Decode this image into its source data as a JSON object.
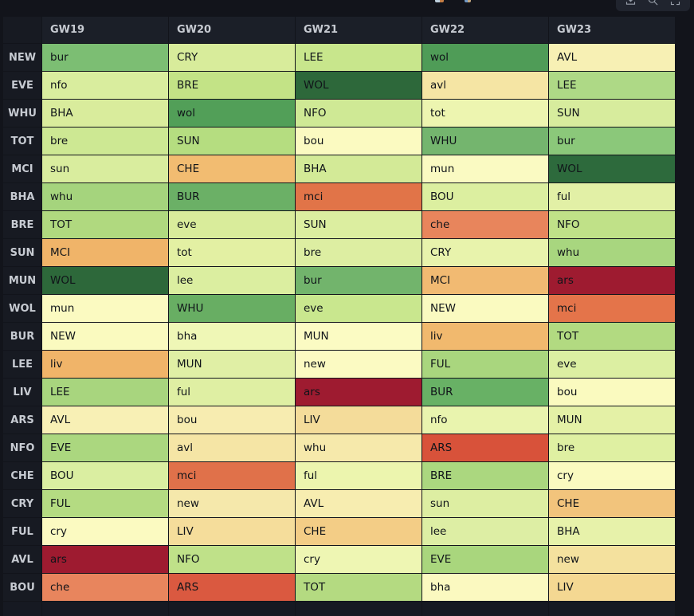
{
  "toolbar": {
    "icons": [
      {
        "name": "download-icon"
      },
      {
        "name": "search-icon"
      },
      {
        "name": "fullscreen-icon"
      }
    ],
    "panel_bg": "#20242e",
    "icon_color": "#99a0ab"
  },
  "table": {
    "corner_label": "",
    "columns": [
      "GW19",
      "GW20",
      "GW21",
      "GW22",
      "GW23"
    ],
    "header_bg": "#1b1f28",
    "team_col_bg": "#171a22",
    "label_color": "#c7cbd2",
    "cell_text_color": "#101419",
    "rows": [
      {
        "team": "NEW",
        "cells": [
          {
            "t": "bur",
            "c": "#7cbe73"
          },
          {
            "t": "CRY",
            "c": "#d8ec9b"
          },
          {
            "t": "LEE",
            "c": "#c8e68c"
          },
          {
            "t": "wol",
            "c": "#4f9c57"
          },
          {
            "t": "AVL",
            "c": "#f7f0b4"
          }
        ]
      },
      {
        "team": "EVE",
        "cells": [
          {
            "t": "nfo",
            "c": "#d9ed9e"
          },
          {
            "t": "BRE",
            "c": "#c3e386"
          },
          {
            "t": "WOL",
            "c": "#2d683a"
          },
          {
            "t": "avl",
            "c": "#f5e5a4"
          },
          {
            "t": "LEE",
            "c": "#aed986"
          }
        ]
      },
      {
        "team": "WHU",
        "cells": [
          {
            "t": "BHA",
            "c": "#d9ec9c"
          },
          {
            "t": "wol",
            "c": "#529f58"
          },
          {
            "t": "NFO",
            "c": "#cfe995"
          },
          {
            "t": "tot",
            "c": "#edf5b0"
          },
          {
            "t": "SUN",
            "c": "#d7ec9d"
          }
        ]
      },
      {
        "team": "TOT",
        "cells": [
          {
            "t": "bre",
            "c": "#cde893"
          },
          {
            "t": "SUN",
            "c": "#b5dd80"
          },
          {
            "t": "bou",
            "c": "#fbfac1"
          },
          {
            "t": "WHU",
            "c": "#74b56e"
          },
          {
            "t": "bur",
            "c": "#8bc87a"
          }
        ]
      },
      {
        "team": "MCI",
        "cells": [
          {
            "t": "sun",
            "c": "#d9ed9e"
          },
          {
            "t": "CHE",
            "c": "#f2bc71"
          },
          {
            "t": "BHA",
            "c": "#d3ea97"
          },
          {
            "t": "mun",
            "c": "#fafac2"
          },
          {
            "t": "WOL",
            "c": "#2d6a3c"
          }
        ]
      },
      {
        "team": "BHA",
        "cells": [
          {
            "t": "whu",
            "c": "#a5d47d"
          },
          {
            "t": "BUR",
            "c": "#6bb066"
          },
          {
            "t": "mci",
            "c": "#e17448"
          },
          {
            "t": "BOU",
            "c": "#dcefa0"
          },
          {
            "t": "ful",
            "c": "#e2f0a6"
          }
        ]
      },
      {
        "team": "BRE",
        "cells": [
          {
            "t": "TOT",
            "c": "#b0d97f"
          },
          {
            "t": "eve",
            "c": "#d9ec9b"
          },
          {
            "t": "SUN",
            "c": "#dceea0"
          },
          {
            "t": "che",
            "c": "#e8855c"
          },
          {
            "t": "NFO",
            "c": "#c0e188"
          }
        ]
      },
      {
        "team": "SUN",
        "cells": [
          {
            "t": "MCI",
            "c": "#f0b469"
          },
          {
            "t": "tot",
            "c": "#e3f0a3"
          },
          {
            "t": "bre",
            "c": "#ddeea2"
          },
          {
            "t": "CRY",
            "c": "#e8f3ac"
          },
          {
            "t": "whu",
            "c": "#a8d67f"
          }
        ]
      },
      {
        "team": "MUN",
        "cells": [
          {
            "t": "WOL",
            "c": "#2d683a"
          },
          {
            "t": "lee",
            "c": "#dbeea0"
          },
          {
            "t": "bur",
            "c": "#72b46c"
          },
          {
            "t": "MCI",
            "c": "#f1ba72"
          },
          {
            "t": "ars",
            "c": "#9e1b30"
          }
        ]
      },
      {
        "team": "WOL",
        "cells": [
          {
            "t": "mun",
            "c": "#fbfac1"
          },
          {
            "t": "WHU",
            "c": "#68ae63"
          },
          {
            "t": "eve",
            "c": "#c9e78e"
          },
          {
            "t": "NEW",
            "c": "#fafac0"
          },
          {
            "t": "mci",
            "c": "#e4744a"
          }
        ]
      },
      {
        "team": "BUR",
        "cells": [
          {
            "t": "NEW",
            "c": "#fafabf"
          },
          {
            "t": "bha",
            "c": "#eff7b6"
          },
          {
            "t": "MUN",
            "c": "#fbfbc3"
          },
          {
            "t": "liv",
            "c": "#f1b96e"
          },
          {
            "t": "TOT",
            "c": "#b2da81"
          }
        ]
      },
      {
        "team": "LEE",
        "cells": [
          {
            "t": "liv",
            "c": "#f0b469"
          },
          {
            "t": "MUN",
            "c": "#e0efa5"
          },
          {
            "t": "new",
            "c": "#fbfac2"
          },
          {
            "t": "FUL",
            "c": "#a9d67e"
          },
          {
            "t": "eve",
            "c": "#dcefa2"
          }
        ]
      },
      {
        "team": "LIV",
        "cells": [
          {
            "t": "LEE",
            "c": "#a8d57e"
          },
          {
            "t": "ful",
            "c": "#dfefa3"
          },
          {
            "t": "ars",
            "c": "#9e1b30"
          },
          {
            "t": "BUR",
            "c": "#68b165"
          },
          {
            "t": "bou",
            "c": "#fafabf"
          }
        ]
      },
      {
        "team": "ARS",
        "cells": [
          {
            "t": "AVL",
            "c": "#f8f0b5"
          },
          {
            "t": "bou",
            "c": "#f7ecb0"
          },
          {
            "t": "LIV",
            "c": "#f4dc9a"
          },
          {
            "t": "nfo",
            "c": "#e9f4ae"
          },
          {
            "t": "MUN",
            "c": "#e4f1a6"
          }
        ]
      },
      {
        "team": "NFO",
        "cells": [
          {
            "t": "EVE",
            "c": "#abd77f"
          },
          {
            "t": "avl",
            "c": "#f5e5a5"
          },
          {
            "t": "whu",
            "c": "#f6e9ab"
          },
          {
            "t": "ARS",
            "c": "#d8523a"
          },
          {
            "t": "bre",
            "c": "#dff0a2"
          }
        ]
      },
      {
        "team": "CHE",
        "cells": [
          {
            "t": "BOU",
            "c": "#daeea1"
          },
          {
            "t": "mci",
            "c": "#e0714a"
          },
          {
            "t": "ful",
            "c": "#ecf5ae"
          },
          {
            "t": "BRE",
            "c": "#abd77f"
          },
          {
            "t": "cry",
            "c": "#fafac0"
          }
        ]
      },
      {
        "team": "CRY",
        "cells": [
          {
            "t": "FUL",
            "c": "#b4db82"
          },
          {
            "t": "new",
            "c": "#f5e8ab"
          },
          {
            "t": "AVL",
            "c": "#f7edb0"
          },
          {
            "t": "sun",
            "c": "#ddeea2"
          },
          {
            "t": "CHE",
            "c": "#f2c47c"
          }
        ]
      },
      {
        "team": "FUL",
        "cells": [
          {
            "t": "cry",
            "c": "#fbfac1"
          },
          {
            "t": "LIV",
            "c": "#f5dd9b"
          },
          {
            "t": "CHE",
            "c": "#f3cd86"
          },
          {
            "t": "lee",
            "c": "#ddeea4"
          },
          {
            "t": "BHA",
            "c": "#e7f2aa"
          }
        ]
      },
      {
        "team": "AVL",
        "cells": [
          {
            "t": "ars",
            "c": "#9e1b30"
          },
          {
            "t": "NFO",
            "c": "#bfe189"
          },
          {
            "t": "cry",
            "c": "#eef6b3"
          },
          {
            "t": "EVE",
            "c": "#a9d67d"
          },
          {
            "t": "new",
            "c": "#f4e19e"
          }
        ]
      },
      {
        "team": "BOU",
        "cells": [
          {
            "t": "che",
            "c": "#e8855d"
          },
          {
            "t": "ARS",
            "c": "#da5940"
          },
          {
            "t": "TOT",
            "c": "#b4da81"
          },
          {
            "t": "bha",
            "c": "#fbf9c0"
          },
          {
            "t": "LIV",
            "c": "#f4d892"
          }
        ]
      }
    ]
  }
}
